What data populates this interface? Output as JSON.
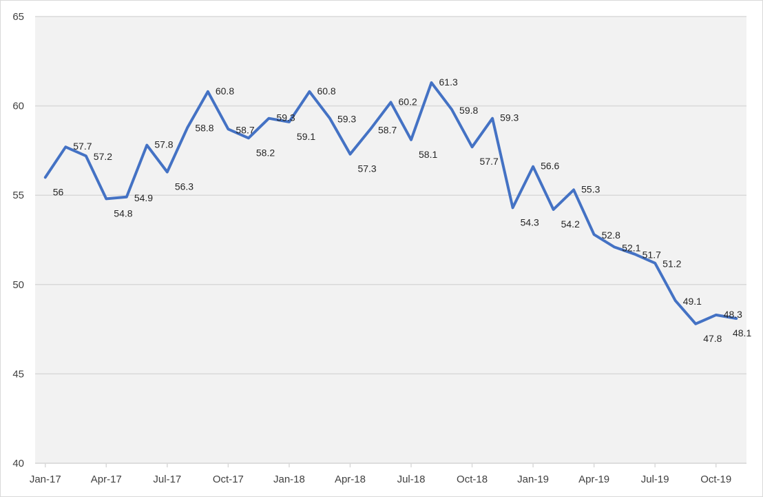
{
  "chart_data": {
    "type": "line",
    "title": "",
    "xlabel": "",
    "ylabel": "",
    "ylim": [
      40,
      65
    ],
    "yticks": [
      "40",
      "45",
      "50",
      "55",
      "60",
      "65"
    ],
    "xtick_labels": [
      "Jan-17",
      "Apr-17",
      "Jul-17",
      "Oct-17",
      "Jan-18",
      "Apr-18",
      "Jul-18",
      "Oct-18",
      "Jan-19",
      "Apr-19",
      "Jul-19",
      "Oct-19"
    ],
    "grid": true,
    "legend": "none",
    "x": [
      "Jan-17",
      "Feb-17",
      "Mar-17",
      "Apr-17",
      "May-17",
      "Jun-17",
      "Jul-17",
      "Aug-17",
      "Sep-17",
      "Oct-17",
      "Nov-17",
      "Dec-17",
      "Jan-18",
      "Feb-18",
      "Mar-18",
      "Apr-18",
      "May-18",
      "Jun-18",
      "Jul-18",
      "Aug-18",
      "Sep-18",
      "Oct-18",
      "Nov-18",
      "Dec-18",
      "Jan-19",
      "Feb-19",
      "Mar-19",
      "Apr-19",
      "May-19",
      "Jun-19",
      "Jul-19",
      "Aug-19",
      "Sep-19",
      "Oct-19",
      "Nov-19"
    ],
    "series": [
      {
        "color": "#4472c4",
        "values": [
          56,
          57.7,
          57.2,
          54.8,
          54.9,
          57.8,
          56.3,
          58.8,
          60.8,
          58.7,
          58.2,
          59.3,
          59.1,
          60.8,
          59.3,
          57.3,
          58.7,
          60.2,
          58.1,
          61.3,
          59.8,
          57.7,
          59.3,
          54.3,
          56.6,
          54.2,
          55.3,
          52.8,
          52.1,
          51.7,
          51.2,
          49.1,
          47.8,
          48.3,
          48.1
        ],
        "labels": [
          "56",
          "57.7",
          "57.2",
          "54.8",
          "54.9",
          "57.8",
          "56.3",
          "58.8",
          "60.8",
          "58.7",
          "58.2",
          "59.3",
          "59.1",
          "60.8",
          "59.3",
          "57.3",
          "58.7",
          "60.2",
          "58.1",
          "61.3",
          "59.8",
          "57.7",
          "59.3",
          "54.3",
          "56.6",
          "54.2",
          "55.3",
          "52.8",
          "52.1",
          "51.7",
          "51.2",
          "49.1",
          "47.8",
          "48.3",
          "48.1"
        ]
      }
    ]
  },
  "colors": {
    "plot_background": "#f2f2f2",
    "gridline": "#d9d9d9",
    "axis_text": "#404040"
  }
}
